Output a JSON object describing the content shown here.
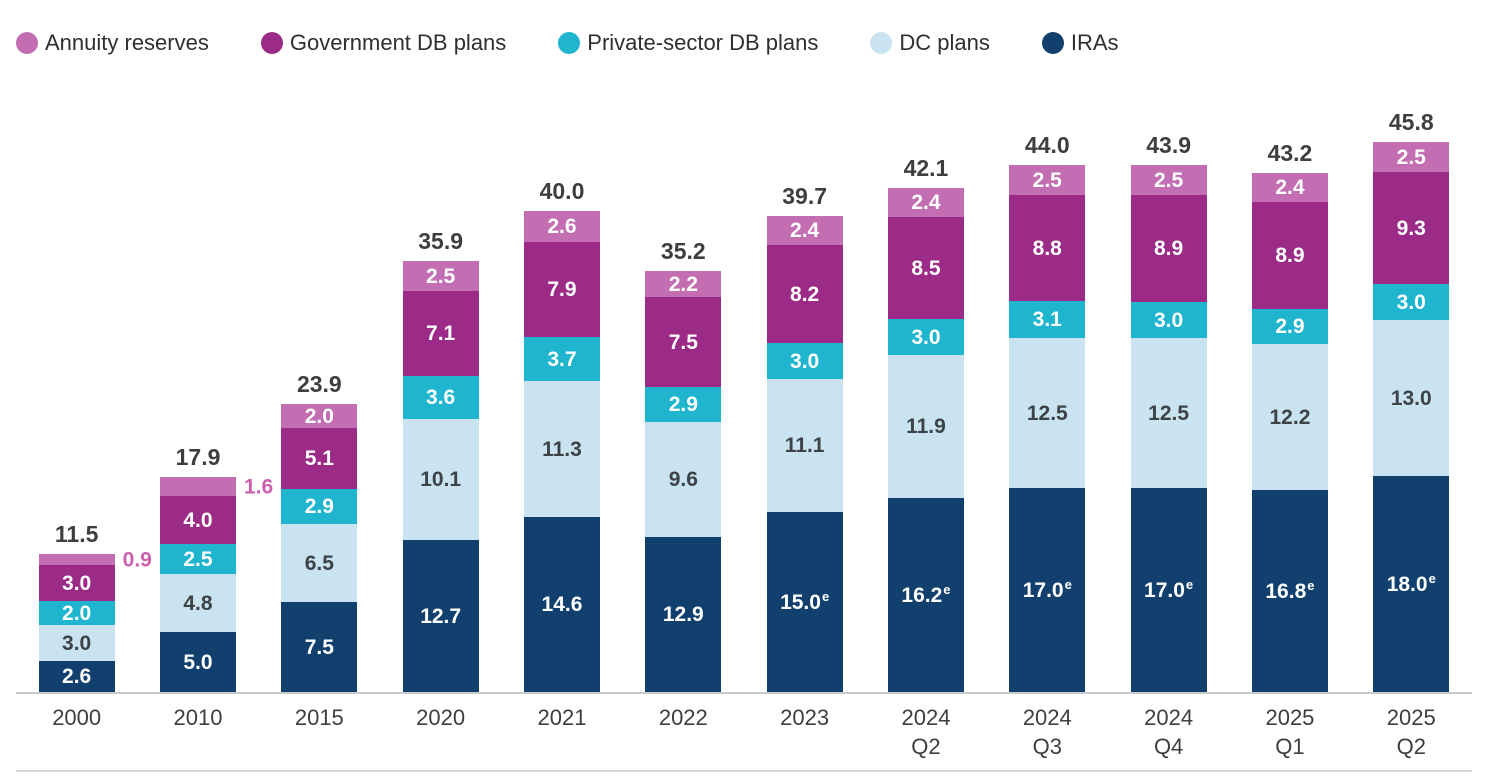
{
  "legend": {
    "items": [
      {
        "label": "Annuity reserves",
        "color": "#c36db2"
      },
      {
        "label": "Government DB plans",
        "color": "#9b2b86"
      },
      {
        "label": "Private-sector DB plans",
        "color": "#1fb5ce"
      },
      {
        "label": "DC plans",
        "color": "#c9e4f0"
      },
      {
        "label": "IRAs",
        "color": "#11406f"
      }
    ]
  },
  "chart_data": {
    "type": "bar",
    "stacked": true,
    "grid": false,
    "legend_position": "top",
    "ylim": [
      0,
      46.5
    ],
    "categories": [
      "2000",
      "2010",
      "2015",
      "2020",
      "2021",
      "2022",
      "2023",
      "2024 Q2",
      "2024 Q3",
      "2024 Q4",
      "2025 Q1",
      "2025 Q2"
    ],
    "totals": [
      "11.5",
      "17.9",
      "23.9",
      "35.9",
      "40.0",
      "35.2",
      "39.7",
      "42.1",
      "44.0",
      "43.9",
      "43.2",
      "45.8"
    ],
    "series": [
      {
        "name": "IRAs",
        "color": "#11406f",
        "label_color": "#ffffff",
        "values": [
          2.6,
          5.0,
          7.5,
          12.7,
          14.6,
          12.9,
          15.0,
          16.2,
          17.0,
          17.0,
          16.8,
          18.0
        ],
        "labels": [
          "2.6",
          "5.0",
          "7.5",
          "12.7",
          "14.6",
          "12.9",
          "15.0",
          "16.2",
          "17.0",
          "17.0",
          "16.8",
          "18.0"
        ],
        "estimated": [
          false,
          false,
          false,
          false,
          false,
          false,
          true,
          true,
          true,
          true,
          true,
          true
        ]
      },
      {
        "name": "DC plans",
        "color": "#c9e4f0",
        "label_color": "#3c4246",
        "values": [
          3.0,
          4.8,
          6.5,
          10.1,
          11.3,
          9.6,
          11.1,
          11.9,
          12.5,
          12.5,
          12.2,
          13.0
        ],
        "labels": [
          "3.0",
          "4.8",
          "6.5",
          "10.1",
          "11.3",
          "9.6",
          "11.1",
          "11.9",
          "12.5",
          "12.5",
          "12.2",
          "13.0"
        ]
      },
      {
        "name": "Private-sector DB plans",
        "color": "#1fb5ce",
        "label_color": "#ffffff",
        "values": [
          2.0,
          2.5,
          2.9,
          3.6,
          3.7,
          2.9,
          3.0,
          3.0,
          3.1,
          3.0,
          2.9,
          3.0
        ],
        "labels": [
          "2.0",
          "2.5",
          "2.9",
          "3.6",
          "3.7",
          "2.9",
          "3.0",
          "3.0",
          "3.1",
          "3.0",
          "2.9",
          "3.0"
        ]
      },
      {
        "name": "Government DB plans",
        "color": "#9b2b86",
        "label_color": "#ffffff",
        "values": [
          3.0,
          4.0,
          5.1,
          7.1,
          7.9,
          7.5,
          8.2,
          8.5,
          8.8,
          8.9,
          8.9,
          9.3
        ],
        "labels": [
          "3.0",
          "4.0",
          "5.1",
          "7.1",
          "7.9",
          "7.5",
          "8.2",
          "8.5",
          "8.8",
          "8.9",
          "8.9",
          "9.3"
        ]
      },
      {
        "name": "Annuity reserves",
        "color": "#c36db2",
        "label_color": "#ffffff",
        "values": [
          0.9,
          1.6,
          2.0,
          2.5,
          2.6,
          2.2,
          2.4,
          2.4,
          2.5,
          2.5,
          2.4,
          2.5
        ],
        "labels": [
          "0.9",
          "1.6",
          "2.0",
          "2.5",
          "2.6",
          "2.2",
          "2.4",
          "2.4",
          "2.5",
          "2.5",
          "2.4",
          "2.5"
        ],
        "outside_label_indices": [
          0,
          1
        ],
        "outside_label_color": "#ca5fae"
      }
    ]
  }
}
